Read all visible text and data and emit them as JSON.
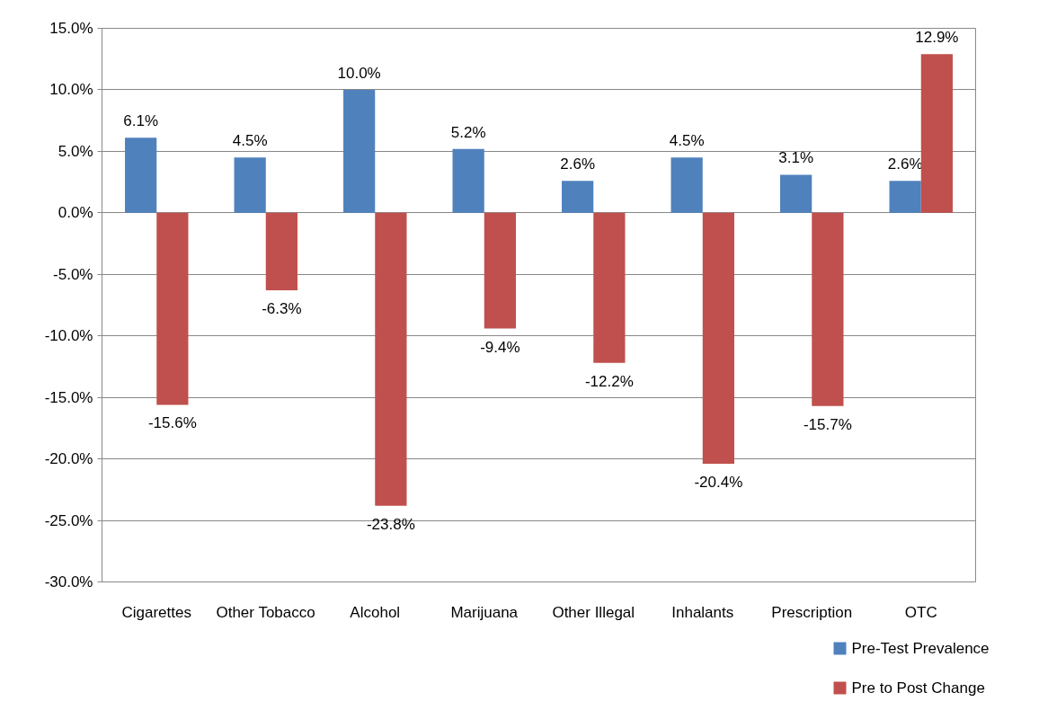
{
  "chart_data": {
    "type": "bar",
    "categories": [
      "Cigarettes",
      "Other Tobacco",
      "Alcohol",
      "Marijuana",
      "Other Illegal",
      "Inhalants",
      "Prescription",
      "OTC"
    ],
    "series": [
      {
        "name": "Pre-Test Prevalence",
        "color": "#4f81bd",
        "values": [
          6.1,
          4.5,
          10.0,
          5.2,
          2.6,
          4.5,
          3.1,
          2.6
        ],
        "value_labels": [
          "6.1%",
          "4.5%",
          "10.0%",
          "5.2%",
          "2.6%",
          "4.5%",
          "3.1%",
          "2.6%"
        ]
      },
      {
        "name": "Pre to Post Change",
        "color": "#c0504d",
        "values": [
          -15.6,
          -6.3,
          -23.8,
          -9.4,
          -12.2,
          -20.4,
          -15.7,
          12.9
        ],
        "value_labels": [
          "-15.6%",
          "-6.3%",
          "-23.8%",
          "-9.4%",
          "-12.2%",
          "-20.4%",
          "-15.7%",
          "12.9%"
        ]
      }
    ],
    "ylim": [
      -30,
      15
    ],
    "yticks": [
      {
        "value": -30,
        "label": "-30.0%"
      },
      {
        "value": -25,
        "label": "-25.0%"
      },
      {
        "value": -20,
        "label": "-20.0%"
      },
      {
        "value": -15,
        "label": "-15.0%"
      },
      {
        "value": -10,
        "label": "-10.0%"
      },
      {
        "value": -5,
        "label": "-5.0%"
      },
      {
        "value": 0,
        "label": "0.0%"
      },
      {
        "value": 5,
        "label": "5.0%"
      },
      {
        "value": 10,
        "label": "10.0%"
      },
      {
        "value": 15,
        "label": "15.0%"
      }
    ],
    "grid": "y",
    "legend": "bottom right"
  }
}
